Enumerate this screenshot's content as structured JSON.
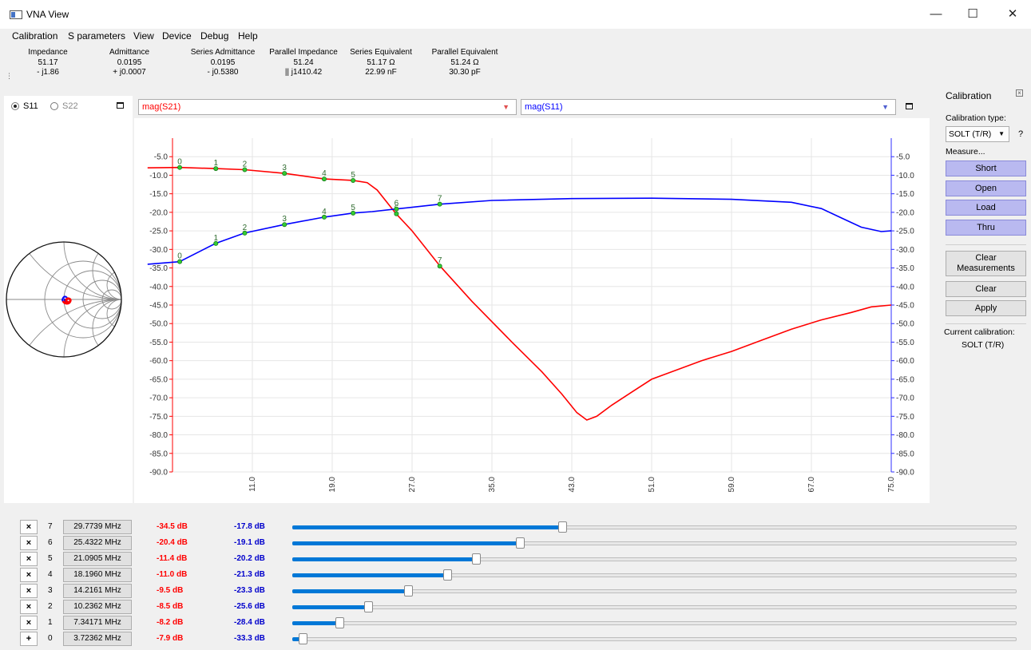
{
  "window": {
    "title": "VNA View",
    "min_glyph": "—",
    "max_glyph": "☐",
    "close_glyph": "✕"
  },
  "menu": [
    "Calibration",
    "S parameters",
    "View",
    "Device",
    "Debug",
    "Help"
  ],
  "info_panel": [
    {
      "header": "Impedance",
      "line1": "51.17",
      "line2": "- j1.86"
    },
    {
      "header": "Admittance",
      "line1": "0.0195",
      "line2": "+ j0.0007"
    },
    {
      "header": "Series Admittance",
      "line1": "0.0195",
      "line2": "- j0.5380"
    },
    {
      "header": "Parallel Impedance",
      "line1": "51.24",
      "line2": "|| j1410.42"
    },
    {
      "header": "Series Equivalent",
      "line1": "51.17 Ω",
      "line2": "22.99 nF"
    },
    {
      "header": "Parallel Equivalent",
      "line1": "51.24 Ω",
      "line2": "30.30 pF"
    }
  ],
  "smith": {
    "options": [
      "S11",
      "S22"
    ],
    "selected": "S11"
  },
  "plot_controls": {
    "left_trace": "mag(S21)",
    "right_trace": "mag(S11)",
    "left_color": "#ff0000",
    "right_color": "#0000ff"
  },
  "chart_data": {
    "type": "line",
    "x_ticks": [
      "11.0",
      "19.0",
      "27.0",
      "35.0",
      "43.0",
      "51.0",
      "59.0",
      "67.0",
      "75.0"
    ],
    "xlim": [
      3.0,
      75.0
    ],
    "y_ticks": [
      "-5.0",
      "-10.0",
      "-15.0",
      "-20.0",
      "-25.0",
      "-30.0",
      "-35.0",
      "-40.0",
      "-45.0",
      "-50.0",
      "-55.0",
      "-60.0",
      "-65.0",
      "-70.0",
      "-75.0",
      "-80.0",
      "-85.0",
      "-90.0"
    ],
    "ylim": [
      -90.0,
      0.0
    ],
    "grid": true,
    "series": [
      {
        "name": "mag(S21)",
        "color": "#ff0000",
        "x": [
          0.5,
          3.7,
          7.3,
          10.2,
          14.2,
          18.2,
          21.1,
          22.5,
          23.5,
          25.4,
          27.0,
          29.8,
          33.0,
          37.0,
          40.0,
          42.0,
          43.5,
          44.5,
          45.5,
          47.0,
          49.0,
          51.0,
          53.0,
          56.0,
          59.0,
          62.0,
          65.0,
          68.0,
          71.0,
          73.0,
          75.0
        ],
        "y": [
          -8.0,
          -7.9,
          -8.2,
          -8.5,
          -9.5,
          -11.0,
          -11.4,
          -12.0,
          -14.0,
          -20.4,
          -25.0,
          -34.5,
          -44.0,
          -55.0,
          -63.0,
          -69.0,
          -74.0,
          -76.0,
          -75.0,
          -72.0,
          -68.5,
          -65.0,
          -63.0,
          -60.0,
          -57.5,
          -54.5,
          -51.5,
          -49.0,
          -47.0,
          -45.5,
          -45.0
        ]
      },
      {
        "name": "mag(S11)",
        "color": "#0000ff",
        "x": [
          0.5,
          3.7,
          7.3,
          10.2,
          14.2,
          18.2,
          21.1,
          23.0,
          25.4,
          29.8,
          35.0,
          43.0,
          51.0,
          59.0,
          65.0,
          68.0,
          70.0,
          72.0,
          74.0,
          75.0
        ],
        "y": [
          -34.0,
          -33.3,
          -28.4,
          -25.6,
          -23.3,
          -21.3,
          -20.2,
          -19.8,
          -19.1,
          -17.8,
          -16.8,
          -16.3,
          -16.2,
          -16.5,
          -17.3,
          -19.0,
          -21.5,
          -24.0,
          -25.2,
          -25.0
        ]
      }
    ],
    "marker_points": [
      {
        "label": "0",
        "x": 3.72362,
        "s21": -7.9,
        "s11": -33.3
      },
      {
        "label": "1",
        "x": 7.34171,
        "s21": -8.2,
        "s11": -28.4
      },
      {
        "label": "2",
        "x": 10.2362,
        "s21": -8.5,
        "s11": -25.6
      },
      {
        "label": "3",
        "x": 14.2161,
        "s21": -9.5,
        "s11": -23.3
      },
      {
        "label": "4",
        "x": 18.196,
        "s21": -11.0,
        "s11": -21.3
      },
      {
        "label": "5",
        "x": 21.0905,
        "s21": -11.4,
        "s11": -20.2
      },
      {
        "label": "6",
        "x": 25.4322,
        "s21": -20.4,
        "s11": -19.1
      },
      {
        "label": "7",
        "x": 29.7739,
        "s21": -34.5,
        "s11": -17.8
      }
    ]
  },
  "calibration": {
    "title": "Calibration",
    "type_label": "Calibration type:",
    "type_value": "SOLT (T/R)",
    "help": "?",
    "measure_label": "Measure...",
    "buttons": [
      "Short",
      "Open",
      "Load",
      "Thru"
    ],
    "clear_measurements_1": "Clear",
    "clear_measurements_2": "Measurements",
    "clear": "Clear",
    "apply": "Apply",
    "current_label": "Current calibration:",
    "current_value": "SOLT (T/R)"
  },
  "markers": [
    {
      "btn": "×",
      "index": "7",
      "freq": "29.7739 MHz",
      "s21": "-34.5 dB",
      "s11": "-17.8 dB",
      "pos": 0.373
    },
    {
      "btn": "×",
      "index": "6",
      "freq": "25.4322 MHz",
      "s21": "-20.4 dB",
      "s11": "-19.1 dB",
      "pos": 0.314
    },
    {
      "btn": "×",
      "index": "5",
      "freq": "21.0905 MHz",
      "s21": "-11.4 dB",
      "s11": "-20.2 dB",
      "pos": 0.254
    },
    {
      "btn": "×",
      "index": "4",
      "freq": "18.1960 MHz",
      "s21": "-11.0 dB",
      "s11": "-21.3 dB",
      "pos": 0.214
    },
    {
      "btn": "×",
      "index": "3",
      "freq": "14.2161 MHz",
      "s21": "-9.5 dB",
      "s11": "-23.3 dB",
      "pos": 0.16
    },
    {
      "btn": "×",
      "index": "2",
      "freq": "10.2362 MHz",
      "s21": "-8.5 dB",
      "s11": "-25.6 dB",
      "pos": 0.105
    },
    {
      "btn": "×",
      "index": "1",
      "freq": "7.34171 MHz",
      "s21": "-8.2 dB",
      "s11": "-28.4 dB",
      "pos": 0.065
    },
    {
      "btn": "+",
      "index": "0",
      "freq": "3.72362 MHz",
      "s21": "-7.9 dB",
      "s11": "-33.3 dB",
      "pos": 0.014
    }
  ]
}
